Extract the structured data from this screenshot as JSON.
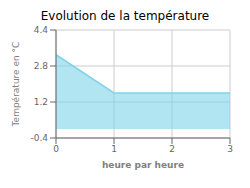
{
  "chart_data": {
    "type": "area",
    "title": "Evolution de la température",
    "xlabel": "heure par heure",
    "ylabel": "Température en °C",
    "x": [
      0,
      1,
      3
    ],
    "values": [
      3.3,
      1.6,
      1.6
    ],
    "color": "#7fd4ea",
    "xlim": [
      0,
      3
    ],
    "ylim": [
      -0.4,
      4.4
    ],
    "xticks": [
      0,
      1,
      2,
      3
    ],
    "yticks": [
      -0.4,
      1.2,
      2.8,
      4.4
    ],
    "grid": true
  }
}
